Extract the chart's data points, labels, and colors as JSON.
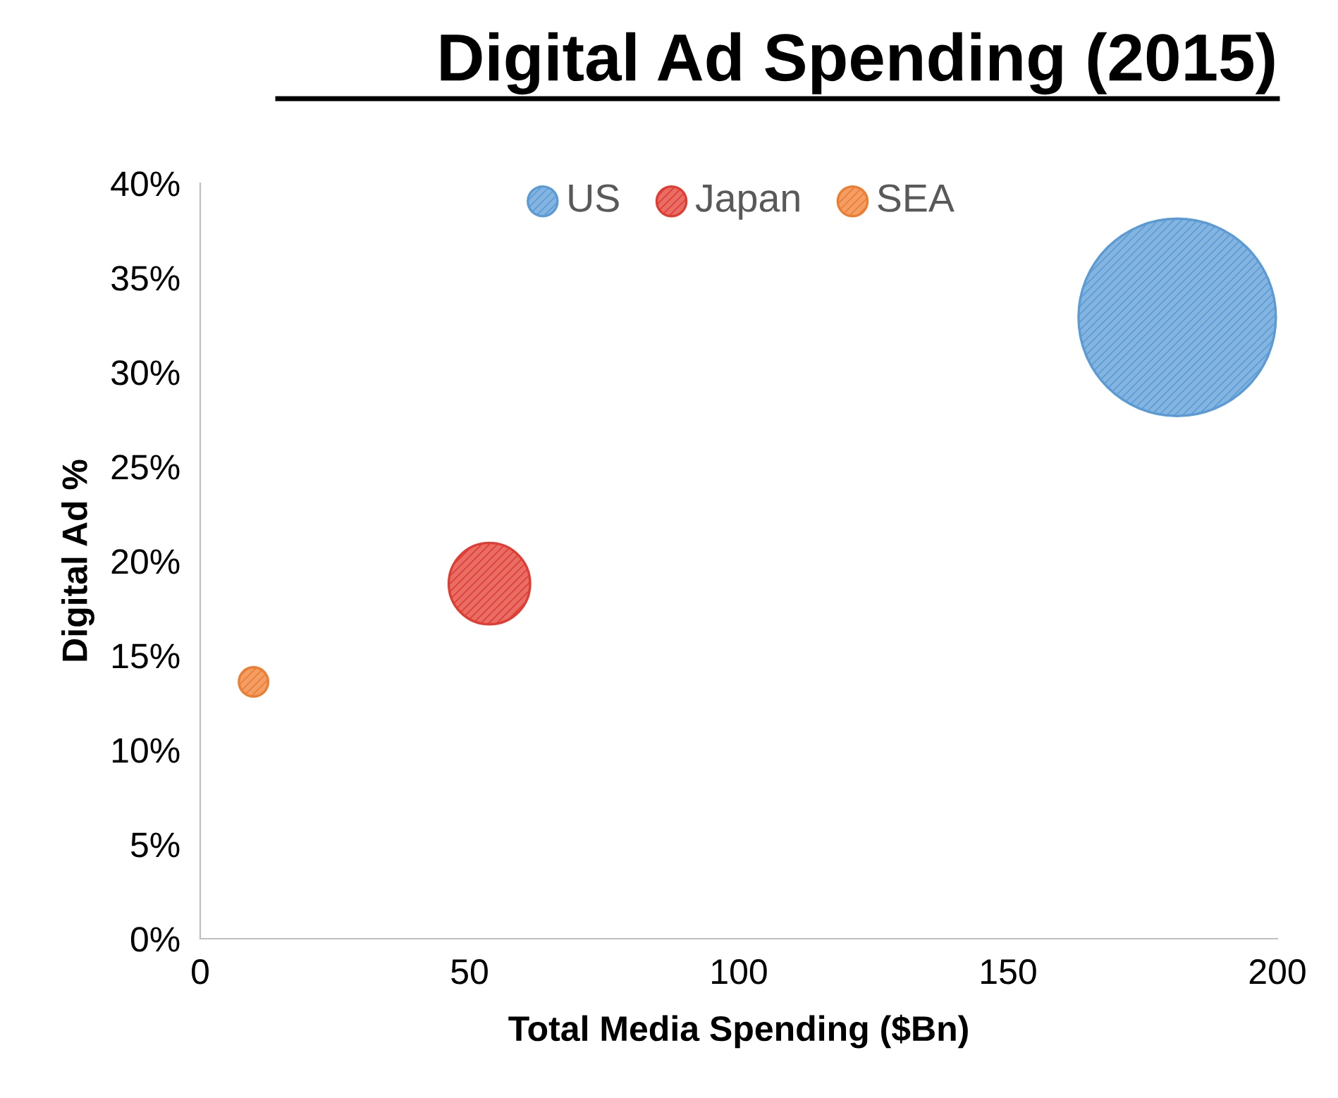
{
  "chart_data": {
    "type": "bubble",
    "title": "Digital Ad Spending (2015)",
    "xlabel": "Total Media Spending ($Bn)",
    "ylabel": "Digital Ad %",
    "series": [
      {
        "name": "US",
        "color": "#5b9bd5",
        "x": [
          181.4
        ],
        "values": [
          32.9
        ],
        "sizes": [
          1
        ]
      },
      {
        "name": "Japan",
        "color": "#e03c31",
        "x": [
          53.7
        ],
        "values": [
          18.8
        ],
        "sizes": [
          0.17
        ]
      },
      {
        "name": "SEA",
        "color": "#ed7d31",
        "x": [
          9.9
        ],
        "values": [
          13.6
        ],
        "sizes": [
          0.022
        ]
      }
    ],
    "xlim": [
      0,
      200
    ],
    "xticks": [
      0,
      50,
      100,
      150,
      200
    ],
    "ylim": [
      0,
      40
    ],
    "yticks": [
      {
        "value": 0,
        "label": "0%"
      },
      {
        "value": 5,
        "label": "5%"
      },
      {
        "value": 10,
        "label": "10%"
      },
      {
        "value": 15,
        "label": "15%"
      },
      {
        "value": 20,
        "label": "20%"
      },
      {
        "value": 25,
        "label": "25%"
      },
      {
        "value": 30,
        "label": "30%"
      },
      {
        "value": 35,
        "label": "35%"
      },
      {
        "value": 40,
        "label": "40%"
      }
    ],
    "grid": false,
    "legend": "top"
  }
}
